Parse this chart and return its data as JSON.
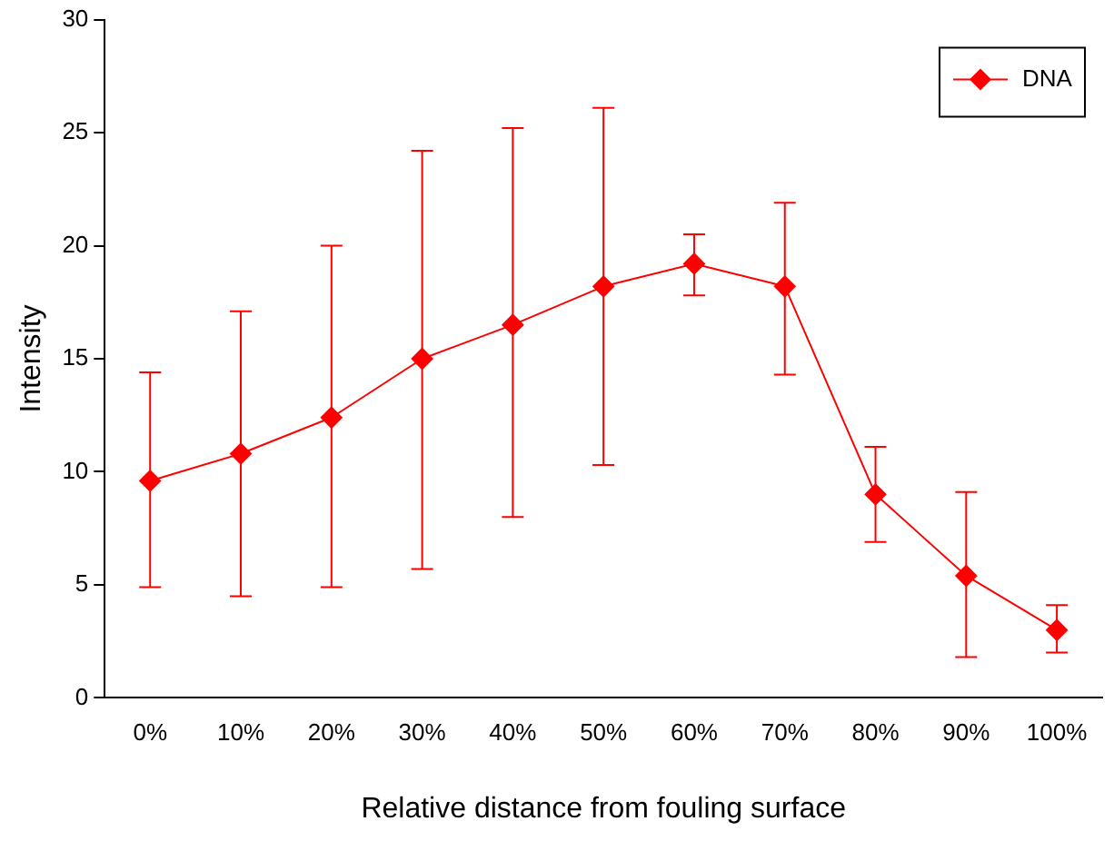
{
  "chart_data": {
    "type": "line",
    "xlabel": "Relative distance from fouling surface",
    "ylabel": "Intensity",
    "categories": [
      "0%",
      "10%",
      "20%",
      "30%",
      "40%",
      "50%",
      "60%",
      "70%",
      "80%",
      "90%",
      "100%"
    ],
    "series": [
      {
        "name": "DNA",
        "color": "#ff0000",
        "values": [
          9.6,
          10.8,
          12.4,
          15.0,
          16.5,
          18.2,
          19.2,
          18.2,
          9.0,
          5.4,
          3.0
        ],
        "errors": [
          [
            4.9,
            14.4
          ],
          [
            4.5,
            17.1
          ],
          [
            4.9,
            20.0
          ],
          [
            5.7,
            24.2
          ],
          [
            8.0,
            25.2
          ],
          [
            10.3,
            26.1
          ],
          [
            17.8,
            20.5
          ],
          [
            14.3,
            21.9
          ],
          [
            6.9,
            11.1
          ],
          [
            1.8,
            9.1
          ],
          [
            2.0,
            4.1
          ]
        ]
      }
    ],
    "ylim": [
      0,
      30
    ],
    "yticks": [
      0,
      5,
      10,
      15,
      20,
      25,
      30
    ],
    "grid": false,
    "legend": "top right",
    "marker": "diamond",
    "line_style": "solid"
  }
}
